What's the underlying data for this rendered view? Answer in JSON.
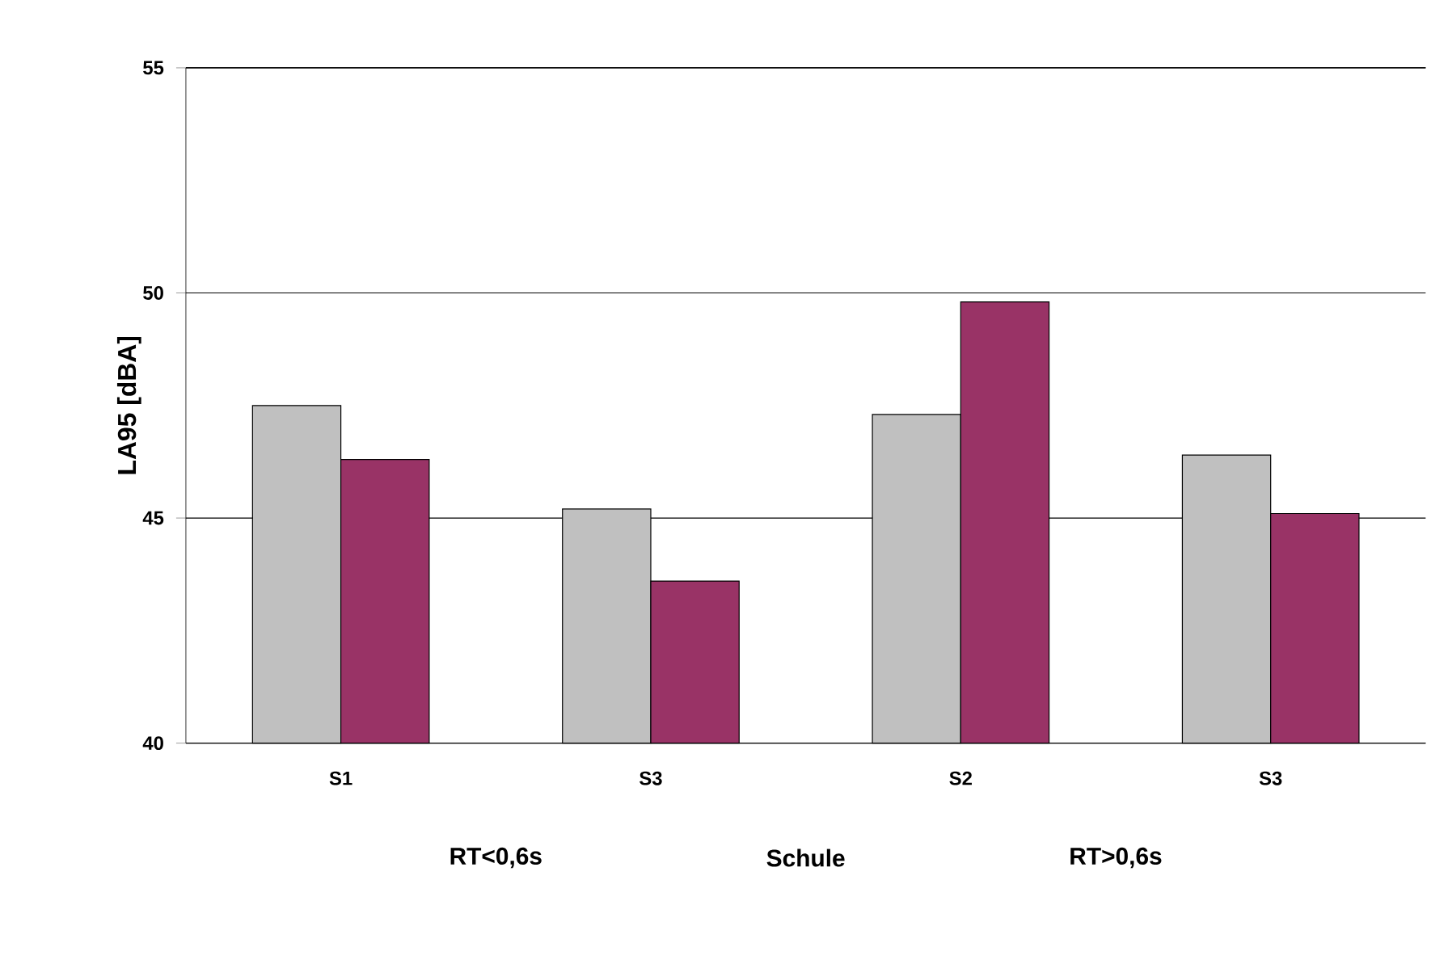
{
  "chart_data": {
    "type": "bar",
    "ylabel": "LA95 [dBA]",
    "xlabel": "Schule",
    "categories": [
      "S1",
      "S3",
      "S2",
      "S3"
    ],
    "series": [
      {
        "color": "#c0c0c0",
        "values": [
          47.5,
          45.2,
          47.3,
          46.4
        ]
      },
      {
        "color": "#993366",
        "values": [
          46.3,
          43.6,
          49.8,
          45.1
        ]
      }
    ],
    "annotations": [
      "RT<0,6s",
      "RT>0,6s"
    ],
    "ylim": [
      40,
      55
    ],
    "yticks": [
      40,
      45,
      50,
      55
    ],
    "grid": "y"
  }
}
